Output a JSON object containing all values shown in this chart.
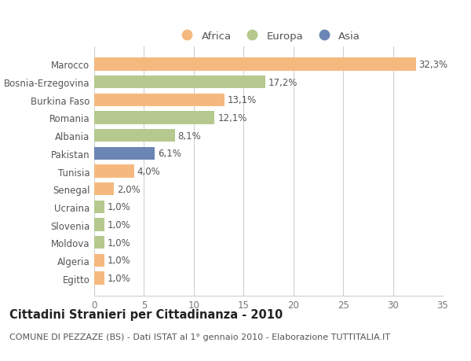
{
  "categories": [
    "Marocco",
    "Bosnia-Erzegovina",
    "Burkina Faso",
    "Romania",
    "Albania",
    "Pakistan",
    "Tunisia",
    "Senegal",
    "Ucraina",
    "Slovenia",
    "Moldova",
    "Algeria",
    "Egitto"
  ],
  "values": [
    32.3,
    17.2,
    13.1,
    12.1,
    8.1,
    6.1,
    4.0,
    2.0,
    1.0,
    1.0,
    1.0,
    1.0,
    1.0
  ],
  "labels": [
    "32,3%",
    "17,2%",
    "13,1%",
    "12,1%",
    "8,1%",
    "6,1%",
    "4,0%",
    "2,0%",
    "1,0%",
    "1,0%",
    "1,0%",
    "1,0%",
    "1,0%"
  ],
  "continents": [
    "Africa",
    "Europa",
    "Africa",
    "Europa",
    "Europa",
    "Asia",
    "Africa",
    "Africa",
    "Europa",
    "Europa",
    "Europa",
    "Africa",
    "Africa"
  ],
  "continent_colors": {
    "Africa": "#F5B97F",
    "Europa": "#B5C98E",
    "Asia": "#6B85B5"
  },
  "legend_items": [
    {
      "label": "Africa",
      "color": "#F5B97F"
    },
    {
      "label": "Europa",
      "color": "#B5C98E"
    },
    {
      "label": "Asia",
      "color": "#6B85B5"
    }
  ],
  "xlim": [
    0,
    35
  ],
  "xticks": [
    0,
    5,
    10,
    15,
    20,
    25,
    30,
    35
  ],
  "title": "Cittadini Stranieri per Cittadinanza - 2010",
  "subtitle": "COMUNE DI PEZZAZE (BS) - Dati ISTAT al 1° gennaio 2010 - Elaborazione TUTTITALIA.IT",
  "background_color": "#ffffff",
  "grid_color": "#d0d0d0",
  "bar_height": 0.72,
  "label_fontsize": 8.5,
  "tick_fontsize": 8.5,
  "title_fontsize": 10.5,
  "subtitle_fontsize": 8
}
